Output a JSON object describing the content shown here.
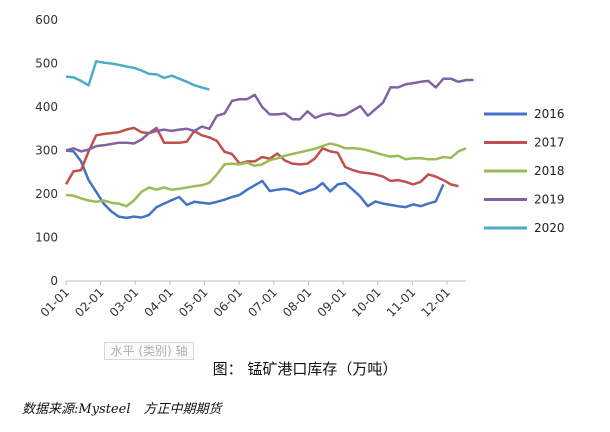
{
  "chart_data": {
    "type": "line",
    "title": "",
    "xlabel": "",
    "ylabel": "",
    "ylim": [
      0,
      600
    ],
    "yticks": [
      0,
      100,
      200,
      300,
      400,
      500,
      600
    ],
    "x_ticks": [
      "01-01",
      "02-01",
      "03-01",
      "04-01",
      "05-01",
      "06-01",
      "07-01",
      "08-01",
      "09-01",
      "10-01",
      "11-01",
      "12-01"
    ],
    "grid": false,
    "legend": "right",
    "series": [
      {
        "name": "2016",
        "color": "#4472C4",
        "values": [
          300,
          298,
          275,
          232,
          205,
          178,
          160,
          148,
          145,
          148,
          146,
          152,
          170,
          178,
          186,
          193,
          175,
          182,
          180,
          178,
          182,
          187,
          193,
          198,
          210,
          220,
          230,
          207,
          210,
          212,
          208,
          200,
          207,
          212,
          225,
          206,
          222,
          225,
          210,
          194,
          172,
          183,
          178,
          175,
          172,
          170,
          176,
          172,
          178,
          183,
          222
        ]
      },
      {
        "name": "2017",
        "color": "#C0504D",
        "values": [
          222,
          252,
          255,
          298,
          335,
          338,
          340,
          342,
          348,
          352,
          342,
          340,
          352,
          318,
          318,
          318,
          320,
          345,
          335,
          330,
          322,
          297,
          292,
          270,
          275,
          275,
          285,
          281,
          293,
          277,
          270,
          268,
          270,
          282,
          305,
          298,
          295,
          262,
          255,
          250,
          248,
          245,
          240,
          230,
          232,
          228,
          222,
          228,
          245,
          240,
          232,
          222,
          218
        ]
      },
      {
        "name": "2018",
        "color": "#9BBB59",
        "values": [
          198,
          196,
          190,
          185,
          182,
          185,
          180,
          178,
          172,
          185,
          205,
          215,
          210,
          215,
          210,
          212,
          215,
          218,
          220,
          226,
          245,
          268,
          270,
          268,
          272,
          265,
          268,
          278,
          282,
          288,
          292,
          296,
          300,
          304,
          310,
          316,
          312,
          305,
          305,
          304,
          300,
          295,
          290,
          286,
          288,
          280,
          282,
          282,
          280,
          280,
          285,
          283,
          298,
          305
        ]
      },
      {
        "name": "2019",
        "color": "#8064A2",
        "values": [
          300,
          305,
          298,
          302,
          310,
          312,
          315,
          318,
          318,
          316,
          325,
          340,
          345,
          348,
          345,
          348,
          350,
          345,
          355,
          350,
          380,
          385,
          414,
          418,
          418,
          428,
          400,
          383,
          383,
          385,
          372,
          372,
          390,
          375,
          382,
          385,
          380,
          382,
          392,
          402,
          380,
          395,
          410,
          445,
          445,
          452,
          455,
          458,
          460,
          445,
          465,
          465,
          458,
          462,
          462
        ]
      },
      {
        "name": "2020",
        "color": "#4BACC6",
        "values": [
          470,
          468,
          460,
          450,
          505,
          502,
          500,
          497,
          493,
          490,
          484,
          476,
          475,
          467,
          472,
          465,
          458,
          450,
          445,
          440
        ]
      }
    ]
  },
  "axis_hint": "水平 (类别) 轴",
  "caption": "图： 锰矿港口库存（万吨）",
  "source": "数据来源:Mysteel　方正中期期货"
}
